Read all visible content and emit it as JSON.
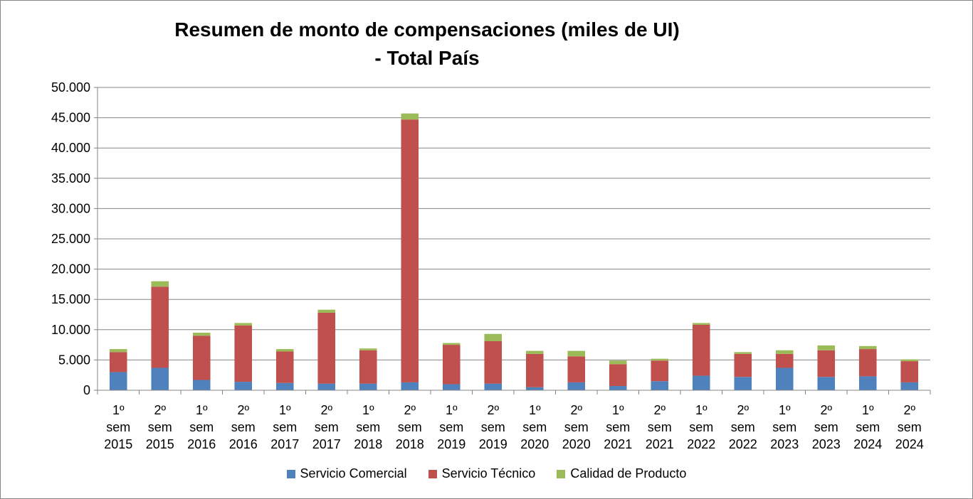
{
  "chart_data": {
    "type": "bar",
    "stacked": true,
    "title_line1": "Resumen de monto de compensaciones (miles de UI)",
    "title_line2": "- Total País",
    "xlabel": "",
    "ylabel": "",
    "ylim": [
      0,
      50000
    ],
    "yticks": [
      0,
      5000,
      10000,
      15000,
      20000,
      25000,
      30000,
      35000,
      40000,
      45000,
      50000
    ],
    "ytick_labels": [
      "0",
      "5.000",
      "10.000",
      "15.000",
      "20.000",
      "25.000",
      "30.000",
      "35.000",
      "40.000",
      "45.000",
      "50.000"
    ],
    "grid": true,
    "legend_position": "bottom",
    "categories": [
      [
        "1º",
        "sem",
        "2015"
      ],
      [
        "2º",
        "sem",
        "2015"
      ],
      [
        "1º",
        "sem",
        "2016"
      ],
      [
        "2º",
        "sem",
        "2016"
      ],
      [
        "1º",
        "sem",
        "2017"
      ],
      [
        "2º",
        "sem",
        "2017"
      ],
      [
        "1º",
        "sem",
        "2018"
      ],
      [
        "2º",
        "sem",
        "2018"
      ],
      [
        "1º",
        "sem",
        "2019"
      ],
      [
        "2º",
        "sem",
        "2019"
      ],
      [
        "1º",
        "sem",
        "2020"
      ],
      [
        "2º",
        "sem",
        "2020"
      ],
      [
        "1º",
        "sem",
        "2021"
      ],
      [
        "2º",
        "sem",
        "2021"
      ],
      [
        "1º",
        "sem",
        "2022"
      ],
      [
        "2º",
        "sem",
        "2022"
      ],
      [
        "1º",
        "sem",
        "2023"
      ],
      [
        "2º",
        "sem",
        "2023"
      ],
      [
        "1º",
        "sem",
        "2024"
      ],
      [
        "2º",
        "sem",
        "2024"
      ]
    ],
    "series": [
      {
        "name": "Servicio Comercial",
        "color": "#4f81bd",
        "values": [
          3000,
          3700,
          1700,
          1400,
          1200,
          1100,
          1100,
          1300,
          1000,
          1100,
          500,
          1300,
          700,
          1500,
          2400,
          2200,
          3700,
          2200,
          2300,
          1300
        ]
      },
      {
        "name": "Servicio Técnico",
        "color": "#c0504d",
        "values": [
          3300,
          13400,
          7300,
          9300,
          5200,
          11700,
          5500,
          43400,
          6500,
          7000,
          5500,
          4300,
          3600,
          3400,
          8400,
          3800,
          2300,
          4400,
          4500,
          3500
        ]
      },
      {
        "name": "Calidad de Producto",
        "color": "#9bbb59",
        "values": [
          500,
          900,
          500,
          400,
          400,
          500,
          300,
          1000,
          300,
          1200,
          500,
          900,
          600,
          300,
          300,
          300,
          600,
          800,
          500,
          300
        ]
      }
    ]
  }
}
